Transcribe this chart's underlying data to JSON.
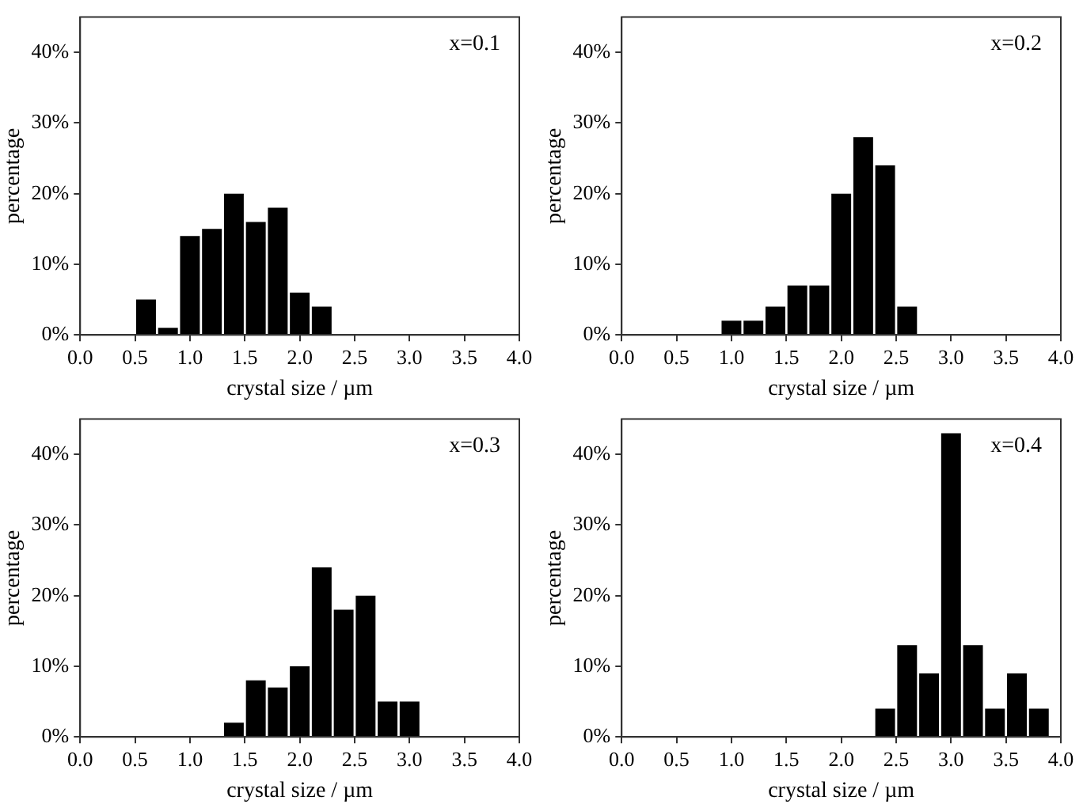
{
  "chart_data": [
    {
      "type": "histogram",
      "annotations": [
        "x=0.1"
      ],
      "xlabel": "crystal size / µm",
      "ylabel": "percentage",
      "bins": [
        0.5,
        0.7,
        0.9,
        1.1,
        1.3,
        1.5,
        1.7,
        1.9,
        2.1,
        2.3
      ],
      "values": [
        5,
        1,
        14,
        15,
        20,
        16,
        18,
        6,
        4
      ],
      "color": "#000000",
      "xlim": [
        0,
        4
      ],
      "xticks": [
        {
          "value": 0,
          "label": "0.0"
        },
        {
          "value": 0.5,
          "label": "0.5"
        },
        {
          "value": 1,
          "label": "1.0"
        },
        {
          "value": 1.5,
          "label": "1.5"
        },
        {
          "value": 2,
          "label": "2.0"
        },
        {
          "value": 2.5,
          "label": "2.5"
        },
        {
          "value": 3,
          "label": "3.0"
        },
        {
          "value": 3.5,
          "label": "3.5"
        },
        {
          "value": 4,
          "label": "4.0"
        }
      ],
      "ylim": [
        0,
        45
      ],
      "yticks": [
        {
          "value": 0,
          "label": "0%"
        },
        {
          "value": 10,
          "label": "10%"
        },
        {
          "value": 20,
          "label": "20%"
        },
        {
          "value": 30,
          "label": "30%"
        },
        {
          "value": 40,
          "label": "40%"
        }
      ],
      "grid": false,
      "legend": false
    },
    {
      "type": "histogram",
      "annotations": [
        "x=0.2"
      ],
      "xlabel": "crystal size / µm",
      "ylabel": "percentage",
      "bins": [
        0.9,
        1.1,
        1.3,
        1.5,
        1.7,
        1.9,
        2.1,
        2.3,
        2.5,
        2.7
      ],
      "values": [
        2,
        2,
        4,
        7,
        7,
        20,
        28,
        24,
        4
      ],
      "color": "#000000",
      "xlim": [
        0,
        4
      ],
      "xticks": [
        {
          "value": 0,
          "label": "0.0"
        },
        {
          "value": 0.5,
          "label": "0.5"
        },
        {
          "value": 1,
          "label": "1.0"
        },
        {
          "value": 1.5,
          "label": "1.5"
        },
        {
          "value": 2,
          "label": "2.0"
        },
        {
          "value": 2.5,
          "label": "2.5"
        },
        {
          "value": 3,
          "label": "3.0"
        },
        {
          "value": 3.5,
          "label": "3.5"
        },
        {
          "value": 4,
          "label": "4.0"
        }
      ],
      "ylim": [
        0,
        45
      ],
      "yticks": [
        {
          "value": 0,
          "label": "0%"
        },
        {
          "value": 10,
          "label": "10%"
        },
        {
          "value": 20,
          "label": "20%"
        },
        {
          "value": 30,
          "label": "30%"
        },
        {
          "value": 40,
          "label": "40%"
        }
      ],
      "grid": false,
      "legend": false
    },
    {
      "type": "histogram",
      "annotations": [
        "x=0.3"
      ],
      "xlabel": "crystal size / µm",
      "ylabel": "percentage",
      "bins": [
        1.3,
        1.5,
        1.7,
        1.9,
        2.1,
        2.3,
        2.5,
        2.7,
        2.9,
        3.1
      ],
      "values": [
        2,
        8,
        7,
        10,
        24,
        18,
        20,
        5,
        5
      ],
      "color": "#000000",
      "xlim": [
        0,
        4
      ],
      "xticks": [
        {
          "value": 0,
          "label": "0.0"
        },
        {
          "value": 0.5,
          "label": "0.5"
        },
        {
          "value": 1,
          "label": "1.0"
        },
        {
          "value": 1.5,
          "label": "1.5"
        },
        {
          "value": 2,
          "label": "2.0"
        },
        {
          "value": 2.5,
          "label": "2.5"
        },
        {
          "value": 3,
          "label": "3.0"
        },
        {
          "value": 3.5,
          "label": "3.5"
        },
        {
          "value": 4,
          "label": "4.0"
        }
      ],
      "ylim": [
        0,
        45
      ],
      "yticks": [
        {
          "value": 0,
          "label": "0%"
        },
        {
          "value": 10,
          "label": "10%"
        },
        {
          "value": 20,
          "label": "20%"
        },
        {
          "value": 30,
          "label": "30%"
        },
        {
          "value": 40,
          "label": "40%"
        }
      ],
      "grid": false,
      "legend": false
    },
    {
      "type": "histogram",
      "annotations": [
        "x=0.4"
      ],
      "xlabel": "crystal size / µm",
      "ylabel": "percentage",
      "bins": [
        2.3,
        2.5,
        2.7,
        2.9,
        3.1,
        3.3,
        3.5,
        3.7,
        3.9
      ],
      "values": [
        4,
        13,
        9,
        43,
        13,
        4,
        9,
        4
      ],
      "color": "#000000",
      "xlim": [
        0,
        4
      ],
      "xticks": [
        {
          "value": 0,
          "label": "0.0"
        },
        {
          "value": 0.5,
          "label": "0.5"
        },
        {
          "value": 1,
          "label": "1.0"
        },
        {
          "value": 1.5,
          "label": "1.5"
        },
        {
          "value": 2,
          "label": "2.0"
        },
        {
          "value": 2.5,
          "label": "2.5"
        },
        {
          "value": 3,
          "label": "3.0"
        },
        {
          "value": 3.5,
          "label": "3.5"
        },
        {
          "value": 4,
          "label": "4.0"
        }
      ],
      "ylim": [
        0,
        45
      ],
      "yticks": [
        {
          "value": 0,
          "label": "0%"
        },
        {
          "value": 10,
          "label": "10%"
        },
        {
          "value": 20,
          "label": "20%"
        },
        {
          "value": 30,
          "label": "30%"
        },
        {
          "value": 40,
          "label": "40%"
        }
      ],
      "grid": false,
      "legend": false
    }
  ]
}
